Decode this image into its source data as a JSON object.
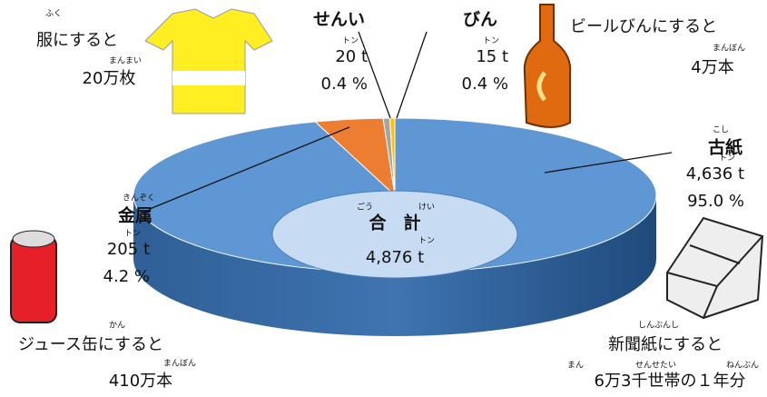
{
  "chart_data": {
    "type": "pie",
    "categories": [
      "古紙",
      "金属",
      "せんい",
      "びん"
    ],
    "category_readings": [
      "こし",
      "きんぞく",
      null,
      null
    ],
    "values": [
      4636,
      205,
      20,
      15
    ],
    "value_labels": [
      "4,636 t",
      "205 t",
      "20 t",
      "15 t"
    ],
    "unit_reading": "トン",
    "percent_labels": [
      "95.0 %",
      "4.2 %",
      "0.4 %",
      "0.4 %"
    ],
    "colors": [
      "#5e97d4",
      "#ed7d31",
      "#a5a5a5",
      "#ffc000"
    ],
    "total": {
      "value": 4876,
      "label": "4,876 t"
    },
    "total_title": "合　計",
    "total_readings": [
      "ごう",
      "けい"
    ],
    "notes": [
      {
        "text": "服にすると",
        "readings": [
          "ふく"
        ],
        "amount": "20万枚",
        "amount_readings": [
          "まんまい"
        ]
      },
      {
        "text": "ビールびんにすると",
        "readings": [],
        "amount": "4万本",
        "amount_readings": [
          "まんぼん"
        ]
      },
      {
        "text": "ジュース缶にすると",
        "readings": [
          "かん"
        ],
        "amount": "410万本",
        "amount_readings": [
          "まんぼん"
        ]
      },
      {
        "text": "新聞紙にすると",
        "readings": [
          "しんぶんし"
        ],
        "amount": "6万3千世帯の１年分",
        "amount_readings": [
          "まん",
          "せんせたい",
          "ねんぶん"
        ]
      }
    ]
  }
}
